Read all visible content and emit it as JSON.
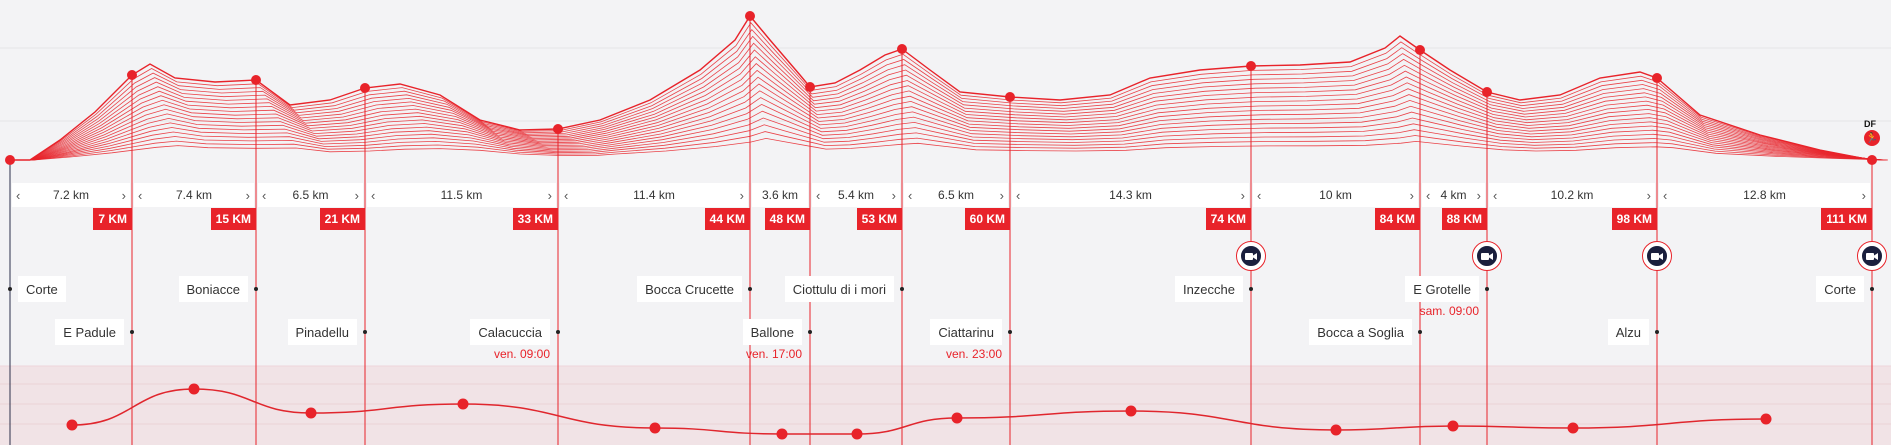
{
  "colors": {
    "accent": "#e8232a",
    "camera": "#1a1f3d",
    "background": "#f3f3f5"
  },
  "profile_badge": {
    "label": "DF",
    "icon": "runner-icon"
  },
  "segments": [
    {
      "distance": "7.2 km"
    },
    {
      "distance": "7.4 km"
    },
    {
      "distance": "6.5 km"
    },
    {
      "distance": "11.5 km"
    },
    {
      "distance": "11.4 km"
    },
    {
      "distance": "3.6 km"
    },
    {
      "distance": "5.4 km"
    },
    {
      "distance": "6.5 km"
    },
    {
      "distance": "14.3 km"
    },
    {
      "distance": "10 km"
    },
    {
      "distance": "4 km"
    },
    {
      "distance": "10.2 km"
    },
    {
      "distance": "12.8 km"
    }
  ],
  "checkpoints": [
    {
      "name": "Corte",
      "km": ""
    },
    {
      "name": "E Padule",
      "km": "7 KM"
    },
    {
      "name": "Boniacce",
      "km": "15 KM"
    },
    {
      "name": "Pinadellu",
      "km": "21 KM"
    },
    {
      "name": "Calacuccia",
      "km": "33 KM",
      "time": "ven. 09:00"
    },
    {
      "name": "Bocca Crucette",
      "km": "44 KM"
    },
    {
      "name": "Ballone",
      "km": "48 KM",
      "time": "ven. 17:00"
    },
    {
      "name": "Ciottulu di i mori",
      "km": "53 KM"
    },
    {
      "name": "Ciattarinu",
      "km": "60 KM",
      "time": "ven. 23:00"
    },
    {
      "name": "Inzecche",
      "km": "74 KM",
      "camera": true
    },
    {
      "name": "Bocca a Soglia",
      "km": "84 KM"
    },
    {
      "name": "E Grotelle",
      "km": "88 KM",
      "time": "sam. 09:00",
      "camera": true
    },
    {
      "name": "Alzu",
      "km": "98 KM",
      "camera": true
    },
    {
      "name": "Corte",
      "km": "111 KM",
      "camera": true
    }
  ],
  "arrows": {
    "left": "‹",
    "right": "›"
  }
}
